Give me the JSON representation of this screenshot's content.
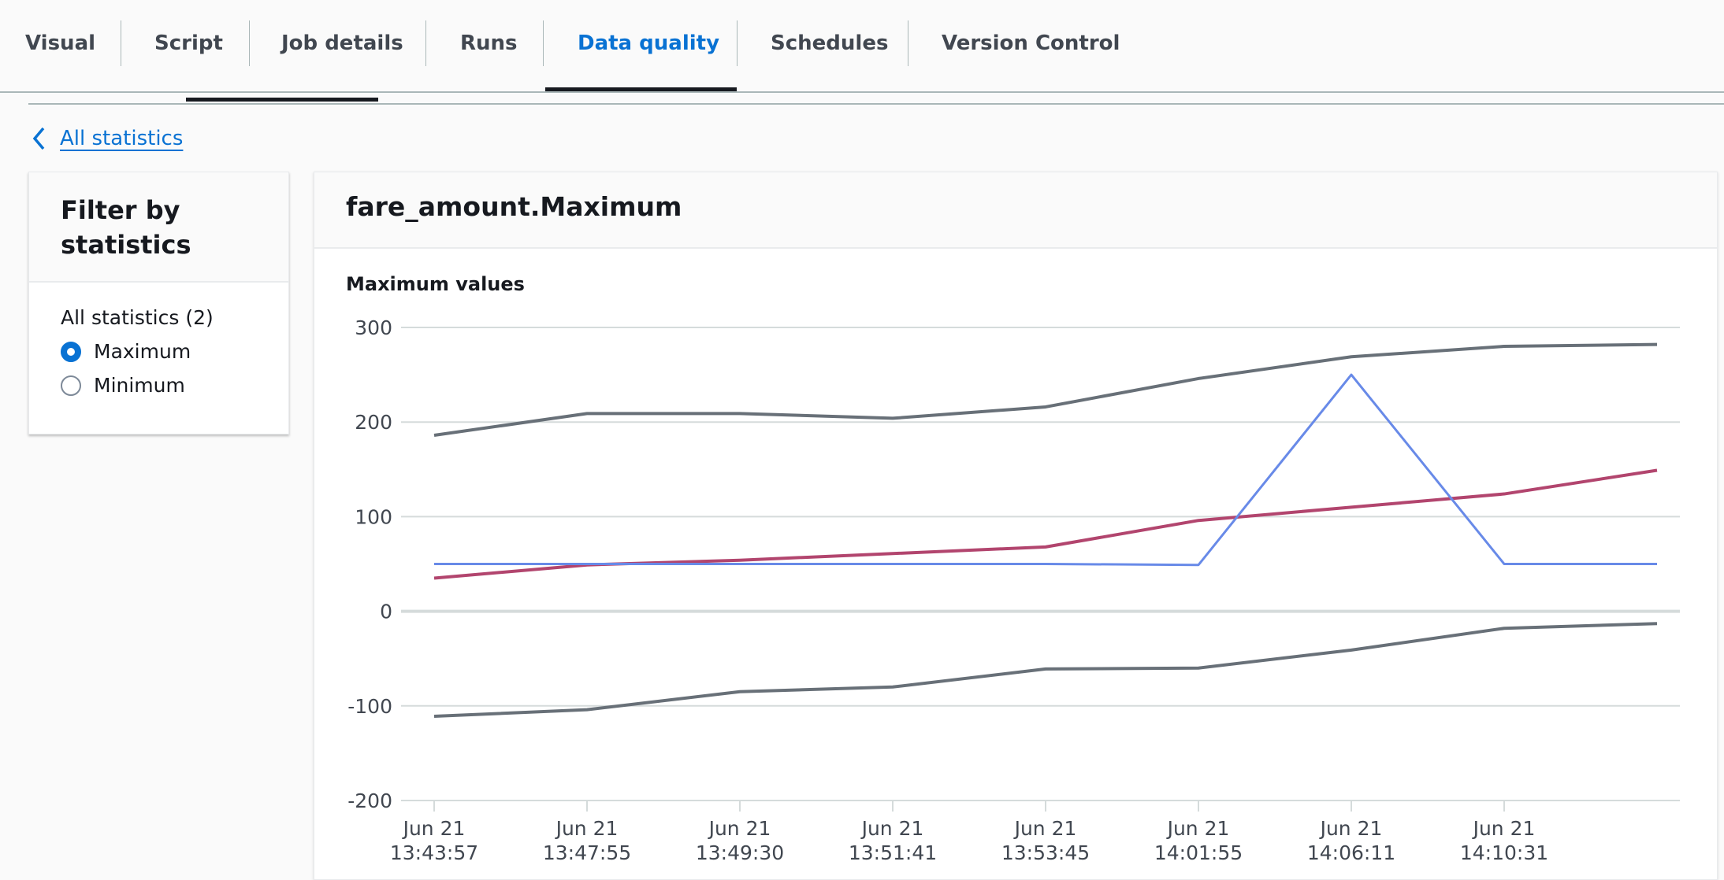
{
  "tabs": [
    {
      "label": "Visual",
      "active": false
    },
    {
      "label": "Script",
      "active": false
    },
    {
      "label": "Job details",
      "active": false
    },
    {
      "label": "Runs",
      "active": false
    },
    {
      "label": "Data quality",
      "active": true
    },
    {
      "label": "Schedules",
      "active": false
    },
    {
      "label": "Version Control",
      "active": false
    }
  ],
  "back_link": "All statistics",
  "filter": {
    "title": "Filter by statistics",
    "group_label": "All statistics (2)",
    "options": [
      {
        "label": "Maximum",
        "selected": true
      },
      {
        "label": "Minimum",
        "selected": false
      }
    ]
  },
  "panel": {
    "title": "fare_amount.Maximum"
  },
  "chart_data": {
    "type": "line",
    "title": "Maximum values",
    "categories": [
      "Jun 21 13:43:57",
      "Jun 21 13:47:55",
      "Jun 21 13:49:30",
      "Jun 21 13:51:41",
      "Jun 21 13:53:45",
      "Jun 21 14:01:55",
      "Jun 21 14:06:11",
      "Jun 21 14:10:31",
      ""
    ],
    "ylim": [
      -200,
      300
    ],
    "yticks": [
      300,
      200,
      100,
      0,
      -100,
      -200
    ],
    "grid": true,
    "series": [
      {
        "color": "#687078",
        "values": [
          186,
          209,
          209,
          204,
          216,
          246,
          269,
          280,
          282
        ]
      },
      {
        "color": "#687078",
        "values": [
          -111,
          -104,
          -85,
          -80,
          -61,
          -60,
          -41,
          -18,
          -13
        ]
      },
      {
        "color": "#b2456e",
        "values": [
          35,
          49,
          54,
          61,
          68,
          96,
          110,
          124,
          149
        ]
      },
      {
        "color": "#688ae8",
        "values": [
          50,
          50,
          50,
          50,
          50,
          49,
          250,
          50,
          50
        ]
      }
    ]
  }
}
